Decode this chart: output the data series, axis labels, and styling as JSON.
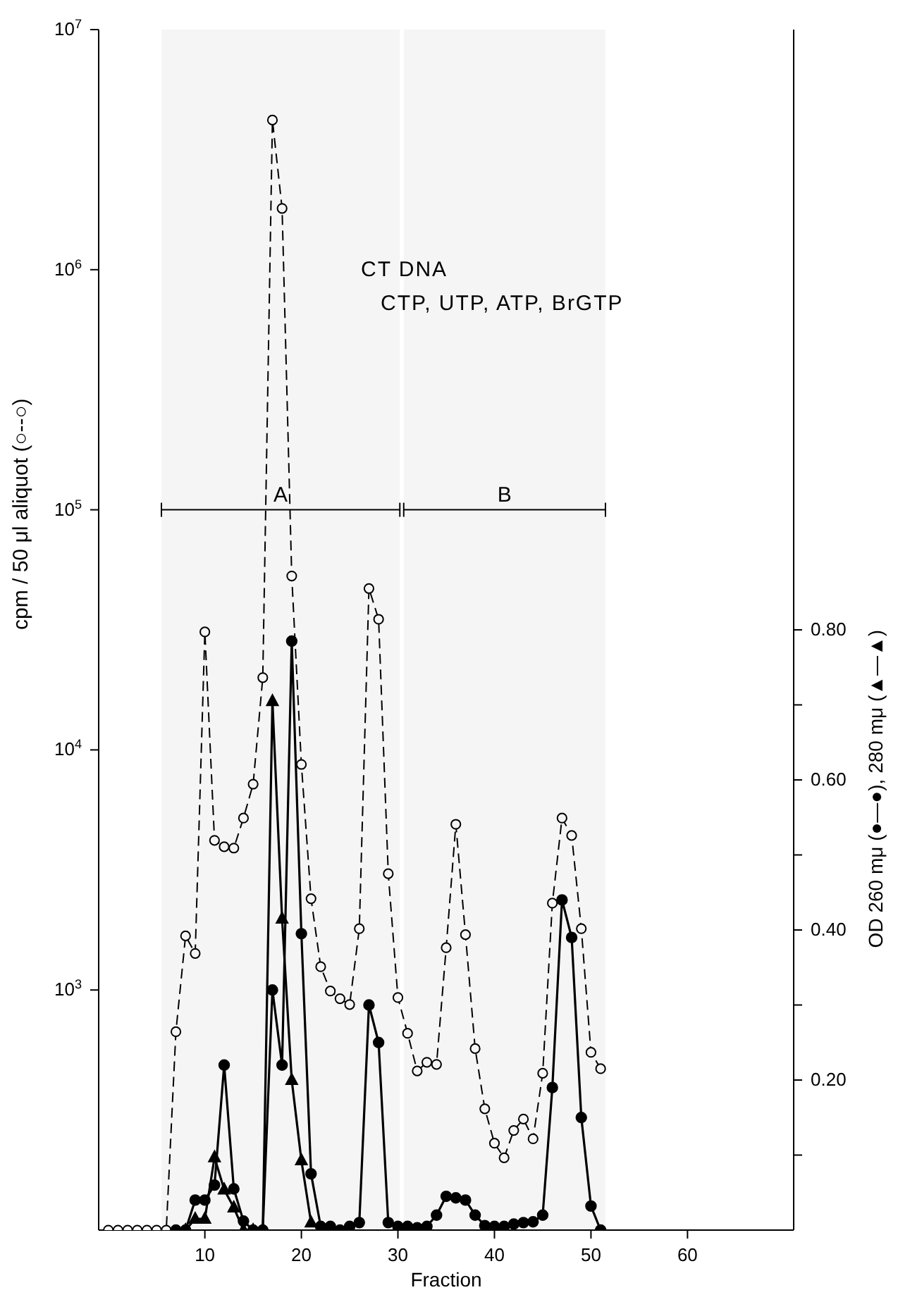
{
  "chart_data": {
    "type": "line",
    "xlabel": "Fraction",
    "ylabel": "cpm / 50 μl aliquot (○--○)",
    "y2label": "OD 260 mμ (●—●), 280 mμ (▲—▲)",
    "xlim": [
      -1,
      71
    ],
    "xticks": [
      10,
      20,
      30,
      40,
      50,
      60
    ],
    "log": "y",
    "ylim": [
      100,
      10000000
    ],
    "yticks": [
      {
        "value": 1000,
        "label": "10$^{3}$"
      },
      {
        "value": 10000,
        "label": "10$^{4}$"
      },
      {
        "value": 100000,
        "label": "10$^{5}$"
      },
      {
        "value": 1000000,
        "label": "10$^{6}$"
      },
      {
        "value": 10000000,
        "label": "10$^{7}$"
      }
    ],
    "y2lim": [
      0,
      1.6
    ],
    "y2ticks": [
      {
        "value": 0.1,
        "label": null
      },
      {
        "value": 0.2,
        "label": "0.20"
      },
      {
        "value": 0.3,
        "label": null
      },
      {
        "value": 0.4,
        "label": "0.40"
      },
      {
        "value": 0.5,
        "label": null
      },
      {
        "value": 0.6,
        "label": "0.60"
      },
      {
        "value": 0.7,
        "label": null
      },
      {
        "value": 0.8,
        "label": "0.80"
      }
    ],
    "grid": false,
    "annotations": [
      "CT DNA",
      "CTP, UTP, ATP, BrGTP"
    ],
    "bands": [
      {
        "axis": "x",
        "from": 5.5,
        "to": 30.2,
        "label": "A"
      },
      {
        "axis": "x",
        "from": 30.6,
        "to": 51.5,
        "label": "B"
      }
    ],
    "series": [
      {
        "color": "#000000",
        "marker": "circle",
        "line_style": "dashed",
        "x": [
          0,
          1,
          2,
          3,
          4,
          5,
          6,
          7,
          8,
          9,
          10,
          11,
          12,
          13,
          14,
          15,
          16,
          17,
          18,
          19,
          20,
          21,
          22,
          23,
          24,
          25,
          26,
          27,
          28,
          29,
          30,
          31,
          32,
          33,
          34,
          35,
          36,
          37,
          38,
          39,
          40,
          41,
          42,
          43,
          44,
          45,
          46,
          47,
          48,
          49,
          50,
          51
        ],
        "values": [
          100,
          100,
          100,
          100,
          100,
          100,
          100,
          670,
          1680,
          1420,
          31000,
          4200,
          3950,
          3900,
          5200,
          7200,
          20000,
          4200000,
          1800000,
          53000,
          8700,
          2400,
          1250,
          990,
          920,
          870,
          1800,
          47000,
          35000,
          3050,
          930,
          660,
          460,
          500,
          490,
          1500,
          4900,
          1700,
          570,
          320,
          230,
          200,
          260,
          290,
          240,
          450,
          2300,
          5200,
          4400,
          1800,
          550,
          470
        ]
      },
      {
        "color": "#000000",
        "marker": "circle",
        "line_style": "solid",
        "axis": "y2",
        "x": [
          7,
          8,
          9,
          10,
          11,
          12,
          13,
          14,
          15,
          16,
          17,
          18,
          19,
          20,
          21,
          22,
          23,
          24,
          25,
          26,
          27,
          28,
          29,
          30,
          31,
          32,
          33,
          34,
          35,
          36,
          37,
          38,
          39,
          40,
          41,
          42,
          43,
          44,
          45,
          46,
          47,
          48,
          49,
          50,
          51
        ],
        "values": [
          0,
          0,
          0.04,
          0.04,
          0.06,
          0.22,
          0.055,
          0.012,
          0,
          0,
          0.32,
          0.22,
          0.785,
          0.395,
          0.075,
          0.005,
          0.005,
          0,
          0.005,
          0.01,
          0.3,
          0.25,
          0.01,
          0.005,
          0.005,
          0.003,
          0.005,
          0.02,
          0.045,
          0.043,
          0.04,
          0.02,
          0.006,
          0.005,
          0.005,
          0.008,
          0.01,
          0.011,
          0.02,
          0.19,
          0.44,
          0.39,
          0.15,
          0.032,
          0
        ]
      },
      {
        "color": "#000000",
        "marker": "triangle",
        "line_style": "solid",
        "axis": "y2",
        "x": [
          8,
          9,
          10,
          11,
          12,
          13,
          14,
          15,
          16,
          17,
          18,
          19,
          20,
          21,
          22
        ],
        "values": [
          0,
          0.015,
          0.015,
          0.097,
          0.054,
          0.03,
          0,
          0,
          0,
          0.705,
          0.415,
          0.2,
          0.093,
          0.01,
          0
        ]
      }
    ]
  }
}
